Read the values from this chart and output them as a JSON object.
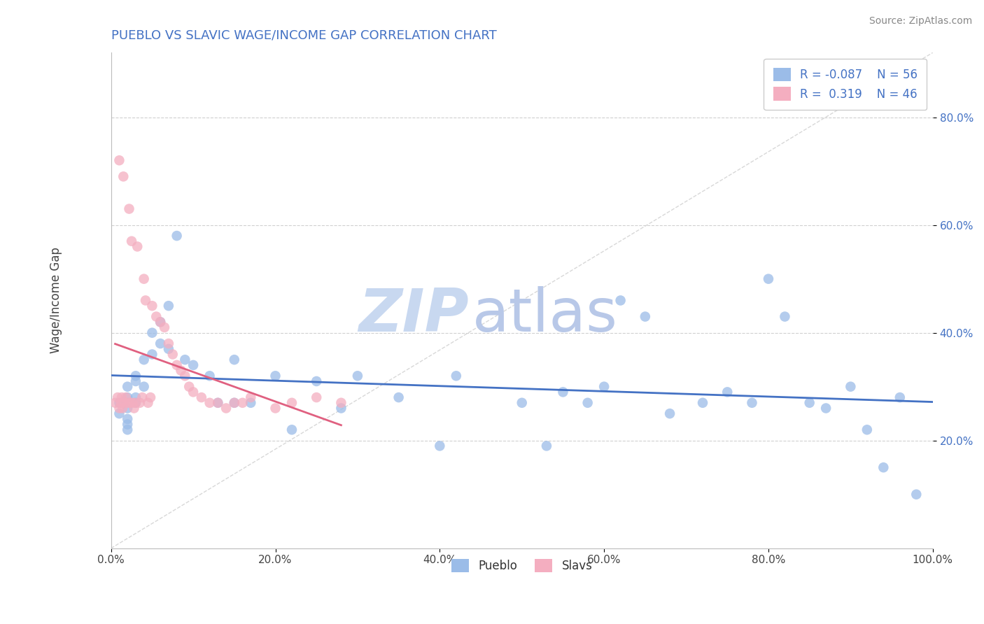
{
  "title": "PUEBLO VS SLAVIC WAGE/INCOME GAP CORRELATION CHART",
  "source": "Source: ZipAtlas.com",
  "ylabel": "Wage/Income Gap",
  "xlim": [
    0.0,
    1.0
  ],
  "ylim": [
    0.0,
    0.92
  ],
  "xticks": [
    0.0,
    0.2,
    0.4,
    0.6,
    0.8,
    1.0
  ],
  "xticklabels": [
    "0.0%",
    "20.0%",
    "40.0%",
    "60.0%",
    "80.0%",
    "100.0%"
  ],
  "ytick_positions": [
    0.2,
    0.4,
    0.6,
    0.8
  ],
  "yticklabels": [
    "20.0%",
    "40.0%",
    "60.0%",
    "80.0%"
  ],
  "r_blue": -0.087,
  "n_blue": 56,
  "r_pink": 0.319,
  "n_pink": 46,
  "blue_scatter_color": "#9bbce8",
  "pink_scatter_color": "#f4aec0",
  "trendline_blue": "#4472c4",
  "trendline_pink": "#e06080",
  "diagonal_color": "#d8d8d8",
  "grid_color": "#d0d0d0",
  "title_color": "#4472c4",
  "watermark_zip_color": "#c8d8f0",
  "watermark_atlas_color": "#b8c8e8",
  "pueblo_x": [
    0.01,
    0.01,
    0.02,
    0.02,
    0.02,
    0.02,
    0.02,
    0.02,
    0.03,
    0.03,
    0.03,
    0.03,
    0.04,
    0.04,
    0.05,
    0.05,
    0.06,
    0.06,
    0.07,
    0.07,
    0.08,
    0.09,
    0.1,
    0.12,
    0.13,
    0.15,
    0.15,
    0.17,
    0.2,
    0.22,
    0.25,
    0.28,
    0.3,
    0.35,
    0.4,
    0.42,
    0.5,
    0.53,
    0.55,
    0.58,
    0.6,
    0.62,
    0.65,
    0.68,
    0.72,
    0.75,
    0.78,
    0.8,
    0.82,
    0.85,
    0.87,
    0.9,
    0.92,
    0.94,
    0.96,
    0.98
  ],
  "pueblo_y": [
    0.27,
    0.25,
    0.3,
    0.28,
    0.24,
    0.26,
    0.23,
    0.22,
    0.32,
    0.28,
    0.31,
    0.27,
    0.35,
    0.3,
    0.36,
    0.4,
    0.38,
    0.42,
    0.45,
    0.37,
    0.58,
    0.35,
    0.34,
    0.32,
    0.27,
    0.35,
    0.27,
    0.27,
    0.32,
    0.22,
    0.31,
    0.26,
    0.32,
    0.28,
    0.19,
    0.32,
    0.27,
    0.19,
    0.29,
    0.27,
    0.3,
    0.46,
    0.43,
    0.25,
    0.27,
    0.29,
    0.27,
    0.5,
    0.43,
    0.27,
    0.26,
    0.3,
    0.22,
    0.15,
    0.28,
    0.1
  ],
  "slavic_x": [
    0.005,
    0.008,
    0.01,
    0.01,
    0.012,
    0.013,
    0.014,
    0.015,
    0.016,
    0.018,
    0.02,
    0.022,
    0.023,
    0.025,
    0.026,
    0.028,
    0.03,
    0.032,
    0.035,
    0.038,
    0.04,
    0.042,
    0.045,
    0.048,
    0.05,
    0.055,
    0.06,
    0.065,
    0.07,
    0.075,
    0.08,
    0.085,
    0.09,
    0.095,
    0.1,
    0.11,
    0.12,
    0.13,
    0.14,
    0.15,
    0.16,
    0.17,
    0.2,
    0.22,
    0.25,
    0.28
  ],
  "slavic_y": [
    0.27,
    0.28,
    0.72,
    0.26,
    0.27,
    0.28,
    0.26,
    0.69,
    0.27,
    0.28,
    0.27,
    0.63,
    0.27,
    0.57,
    0.27,
    0.26,
    0.27,
    0.56,
    0.27,
    0.28,
    0.5,
    0.46,
    0.27,
    0.28,
    0.45,
    0.43,
    0.42,
    0.41,
    0.38,
    0.36,
    0.34,
    0.33,
    0.32,
    0.3,
    0.29,
    0.28,
    0.27,
    0.27,
    0.26,
    0.27,
    0.27,
    0.28,
    0.26,
    0.27,
    0.28,
    0.27
  ]
}
